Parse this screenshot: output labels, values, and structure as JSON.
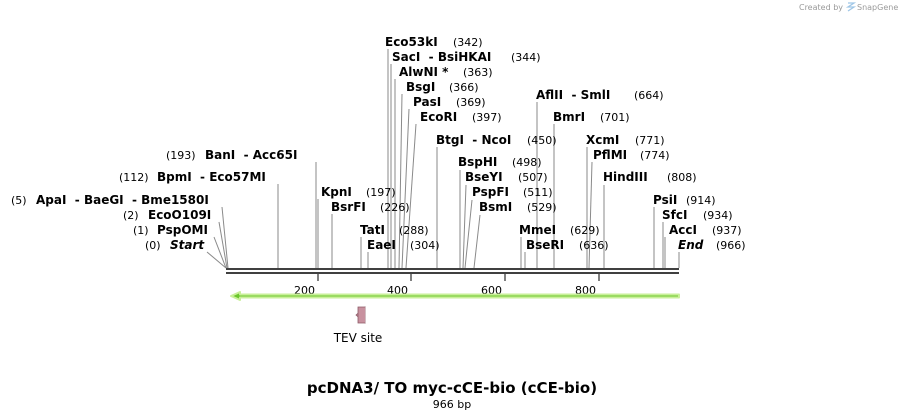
{
  "credit": {
    "prefix": "Created by",
    "brand": "SnapGene"
  },
  "map": {
    "title": "pcDNA3/ TO myc-cCE-bio (cCE-bio)",
    "length_label": "966 bp",
    "length": 966,
    "ticks": [
      {
        "value": 200,
        "label": "200"
      },
      {
        "value": 400,
        "label": "400"
      },
      {
        "value": 600,
        "label": "600"
      },
      {
        "value": 800,
        "label": "800"
      }
    ],
    "sites": [
      {
        "name": "Eco53kI",
        "pos_label": "(342)",
        "pos": 342
      },
      {
        "name": "SacI  - BsiHKAI",
        "pos_label": "(344)",
        "pos": 344
      },
      {
        "name": "AlwNI *",
        "pos_label": "(363)",
        "pos": 363
      },
      {
        "name": "BsgI",
        "pos_label": "(366)",
        "pos": 366
      },
      {
        "name": "PasI",
        "pos_label": "(369)",
        "pos": 369
      },
      {
        "name": "EcoRI",
        "pos_label": "(397)",
        "pos": 397
      },
      {
        "name": "BtgI  - NcoI",
        "pos_label": "(450)",
        "pos": 450
      },
      {
        "name": "BspHI",
        "pos_label": "(498)",
        "pos": 498
      },
      {
        "name": "BseYI",
        "pos_label": "(507)",
        "pos": 507
      },
      {
        "name": "PspFI",
        "pos_label": "(511)",
        "pos": 511
      },
      {
        "name": "BsmI",
        "pos_label": "(529)",
        "pos": 529
      },
      {
        "name": "AflII  - SmlI",
        "pos_label": "(664)",
        "pos": 664
      },
      {
        "name": "BmrI",
        "pos_label": "(701)",
        "pos": 701
      },
      {
        "name": "XcmI",
        "pos_label": "(771)",
        "pos": 771
      },
      {
        "name": "PflMI",
        "pos_label": "(774)",
        "pos": 774
      },
      {
        "name": "HindIII",
        "pos_label": "(808)",
        "pos": 808
      },
      {
        "name": "MmeI",
        "pos_label": "(629)",
        "pos": 629
      },
      {
        "name": "BseRI",
        "pos_label": "(636)",
        "pos": 636
      },
      {
        "name": "PsiI",
        "pos_label": "(914)",
        "pos": 914
      },
      {
        "name": "SfcI",
        "pos_label": "(934)",
        "pos": 934
      },
      {
        "name": "AccI",
        "pos_label": "(937)",
        "pos": 937
      },
      {
        "name": "End",
        "pos_label": "(966)",
        "pos": 966
      },
      {
        "name": "KpnI",
        "pos_label": "(197)",
        "pos": 197
      },
      {
        "name": "BsrFI",
        "pos_label": "(226)",
        "pos": 226
      },
      {
        "name": "TatI",
        "pos_label": "(288)",
        "pos": 288
      },
      {
        "name": "EaeI",
        "pos_label": "(304)",
        "pos": 304
      },
      {
        "name": "BanI  - Acc65I",
        "pos_label": "(193)",
        "pos": 193
      },
      {
        "name": "BpmI  - Eco57MI",
        "pos_label": "(112)",
        "pos": 112
      },
      {
        "name": "ApaI  - BaeGI  - Bme1580I",
        "pos_label": "(5)",
        "pos": 5
      },
      {
        "name": "EcoO109I",
        "pos_label": "(2)",
        "pos": 2
      },
      {
        "name": "PspOMI",
        "pos_label": "(1)",
        "pos": 1
      },
      {
        "name": "Start",
        "pos_label": "(0)",
        "pos": 0
      }
    ],
    "features": [
      {
        "name": "TEV site",
        "start": 288,
        "end": 310,
        "color": "#c8919f"
      }
    ],
    "orf": {
      "start": 966,
      "end": 0,
      "color": "#6bc72b",
      "direction": "reverse"
    }
  }
}
